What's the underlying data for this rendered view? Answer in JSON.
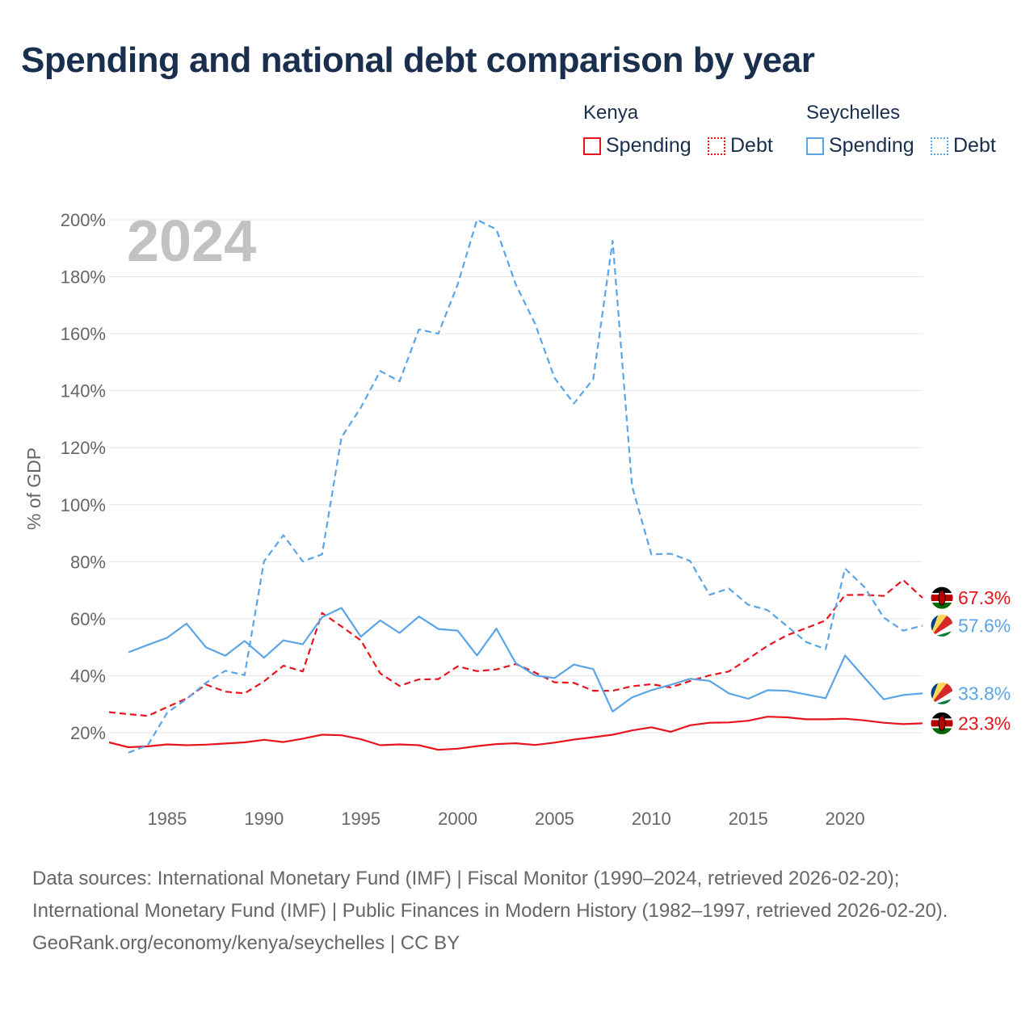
{
  "title": "Spending and national debt comparison by year",
  "legend": {
    "groups": [
      {
        "name": "Kenya",
        "items": [
          {
            "label": "Spending",
            "style": "solid",
            "color": "#e8141c"
          },
          {
            "label": "Debt",
            "style": "dotted",
            "color": "#e8141c"
          }
        ]
      },
      {
        "name": "Seychelles",
        "items": [
          {
            "label": "Spending",
            "style": "solid",
            "color": "#5ba4e6"
          },
          {
            "label": "Debt",
            "style": "dotted",
            "color": "#5ba4e6"
          }
        ]
      }
    ]
  },
  "footer": {
    "sources": "Data sources: International Monetary Fund (IMF) | Fiscal Monitor (1990–2024, retrieved 2026-02-20); International Monetary Fund (IMF) | Public Finances in Modern History (1982–1997, retrieved 2026-02-20).",
    "credit": "GeoRank.org/economy/kenya/seychelles | CC BY"
  },
  "chart_data": {
    "type": "line",
    "title": "Spending and national debt comparison by year",
    "year_label": "2024",
    "ylabel": "% of GDP",
    "xlabel": "",
    "xlim": [
      1982,
      2024
    ],
    "ylim": [
      0,
      200
    ],
    "y_ticks": [
      20,
      40,
      60,
      80,
      100,
      120,
      140,
      160,
      180,
      200
    ],
    "y_tick_labels": [
      "20%",
      "40%",
      "60%",
      "80%",
      "100%",
      "120%",
      "140%",
      "160%",
      "180%",
      "200%"
    ],
    "x_ticks": [
      1985,
      1990,
      1995,
      2000,
      2005,
      2010,
      2015,
      2020
    ],
    "x_tick_labels": [
      "1985",
      "1990",
      "1995",
      "2000",
      "2005",
      "2010",
      "2015",
      "2020"
    ],
    "grid": true,
    "series": [
      {
        "name": "Kenya Debt",
        "country": "Kenya",
        "metric": "Debt",
        "color": "#e8141c",
        "dashed": true,
        "end_label": "67.3%",
        "x": [
          1982,
          1983,
          1984,
          1985,
          1986,
          1987,
          1988,
          1989,
          1990,
          1991,
          1992,
          1993,
          1994,
          1995,
          1996,
          1997,
          1998,
          1999,
          2000,
          2001,
          2002,
          2003,
          2004,
          2005,
          2006,
          2007,
          2008,
          2009,
          2010,
          2011,
          2012,
          2013,
          2014,
          2015,
          2016,
          2017,
          2018,
          2019,
          2020,
          2021,
          2022,
          2023,
          2024
        ],
        "values": [
          27.2,
          26.5,
          25.9,
          29,
          32,
          36.9,
          34.4,
          33.8,
          38,
          43.5,
          41.5,
          62,
          57.3,
          52.4,
          40.8,
          36.4,
          38.7,
          38.8,
          43.3,
          41.6,
          42.2,
          44.1,
          41.1,
          37.7,
          37.5,
          34.7,
          34.7,
          36.3,
          37,
          35.9,
          38.1,
          40.1,
          41.5,
          45.9,
          50.5,
          54.2,
          56.7,
          59.4,
          68.3,
          68.4,
          68,
          73.6,
          67.3
        ]
      },
      {
        "name": "Seychelles Spending",
        "country": "Seychelles",
        "metric": "Spending",
        "color": "#5ba4e6",
        "dashed": false,
        "end_label": "33.8%",
        "x": [
          1982,
          1983,
          1984,
          1985,
          1986,
          1987,
          1988,
          1989,
          1990,
          1991,
          1992,
          1993,
          1994,
          1995,
          1996,
          1997,
          1998,
          1999,
          2000,
          2001,
          2002,
          2003,
          2004,
          2005,
          2006,
          2007,
          2008,
          2009,
          2010,
          2011,
          2012,
          2013,
          2014,
          2015,
          2016,
          2017,
          2018,
          2019,
          2020,
          2021,
          2022,
          2023,
          2024
        ],
        "values": [
          null,
          48.2,
          50.8,
          53.3,
          58.3,
          50,
          47,
          52.2,
          46.3,
          52.4,
          51,
          60.5,
          63.8,
          53.7,
          59.4,
          55,
          60.8,
          56.4,
          55.8,
          47.1,
          56.5,
          44.4,
          40.1,
          39.2,
          43.9,
          42.3,
          27.4,
          32.4,
          34.9,
          36.8,
          38.9,
          38.2,
          33.8,
          31.9,
          34.9,
          34.7,
          33.4,
          32.1,
          47.1,
          39.3,
          31.7,
          33.2,
          33.8
        ]
      },
      {
        "name": "Kenya Spending",
        "country": "Kenya",
        "metric": "Spending",
        "color": "#e8141c",
        "dashed": false,
        "end_label": "23.3%",
        "x": [
          1982,
          1983,
          1984,
          1985,
          1986,
          1987,
          1988,
          1989,
          1990,
          1991,
          1992,
          1993,
          1994,
          1995,
          1996,
          1997,
          1998,
          1999,
          2000,
          2001,
          2002,
          2003,
          2004,
          2005,
          2006,
          2007,
          2008,
          2009,
          2010,
          2011,
          2012,
          2013,
          2014,
          2015,
          2016,
          2017,
          2018,
          2019,
          2020,
          2021,
          2022,
          2023,
          2024
        ],
        "values": [
          16.6,
          14.9,
          15.2,
          15.9,
          15.6,
          15.8,
          16.2,
          16.6,
          17.5,
          16.7,
          17.9,
          19.3,
          19.1,
          17.7,
          15.6,
          15.9,
          15.6,
          14,
          14.4,
          15.3,
          16,
          16.3,
          15.7,
          16.5,
          17.6,
          18.4,
          19.3,
          20.8,
          21.9,
          20.3,
          22.6,
          23.5,
          23.6,
          24.2,
          25.6,
          25.4,
          24.7,
          24.7,
          24.9,
          24.3,
          23.5,
          23,
          23.3
        ]
      },
      {
        "name": "Seychelles Debt",
        "country": "Seychelles",
        "metric": "Debt",
        "color": "#5ba4e6",
        "dashed": true,
        "end_label": "57.6%",
        "x": [
          1982,
          1983,
          1984,
          1985,
          1986,
          1987,
          1988,
          1989,
          1990,
          1991,
          1992,
          1993,
          1994,
          1995,
          1996,
          1997,
          1998,
          1999,
          2000,
          2001,
          2002,
          2003,
          2004,
          2005,
          2006,
          2007,
          2008,
          2009,
          2010,
          2011,
          2012,
          2013,
          2014,
          2015,
          2016,
          2017,
          2018,
          2019,
          2020,
          2021,
          2022,
          2023,
          2024
        ],
        "values": [
          null,
          13,
          15.6,
          27,
          31.8,
          37.5,
          41.7,
          40.2,
          80.1,
          89.3,
          80.1,
          82.6,
          123.6,
          134.1,
          146.9,
          143.3,
          161.5,
          160,
          177.3,
          200,
          196.6,
          177.3,
          163.4,
          144.5,
          135.5,
          144.1,
          192.6,
          106.5,
          82.6,
          82.8,
          80.3,
          68.4,
          70.6,
          64.9,
          63,
          57.4,
          51.8,
          49.3,
          77.6,
          71.1,
          60.4,
          55.8,
          57.6
        ]
      }
    ]
  }
}
